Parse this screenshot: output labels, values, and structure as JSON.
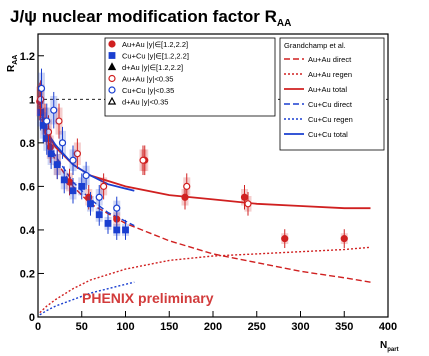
{
  "chart_data": {
    "type": "scatter",
    "title": "J/ψ nuclear modification factor R",
    "title_subscript": "AA",
    "xlabel": "N",
    "xlabel_subscript": "part",
    "ylabel": "R",
    "ylabel_subscript": "AA",
    "xlim": [
      0,
      400
    ],
    "ylim": [
      0,
      1.3
    ],
    "x_ticks": [
      "0",
      "50",
      "100",
      "150",
      "200",
      "250",
      "300",
      "350",
      "400"
    ],
    "y_ticks": [
      "0",
      "0.2",
      "0.4",
      "0.6",
      "0.8",
      "1",
      "1.2"
    ],
    "watermark": "PHENIX preliminary",
    "reference_line_y": 1.0,
    "legend_data_title": "",
    "legend_model_title": "Grandchamp et al.",
    "series": [
      {
        "name": "Au+Au |y|∈[1.2,2.2]",
        "color": "#d02020",
        "marker": "filled-circle",
        "x": [
          2,
          8,
          14,
          22,
          36,
          58,
          90,
          122,
          168,
          236,
          282,
          350
        ],
        "y": [
          0.99,
          0.9,
          0.78,
          0.7,
          0.62,
          0.55,
          0.45,
          0.72,
          0.55,
          0.55,
          0.36,
          0.36
        ]
      },
      {
        "name": "Cu+Cu |y|∈[1.2,2.2]",
        "color": "#1a3fd0",
        "marker": "filled-square",
        "x": [
          3,
          6,
          10,
          15,
          22,
          30,
          40,
          50,
          60,
          70,
          80,
          90,
          100
        ],
        "y": [
          0.94,
          0.88,
          0.82,
          0.75,
          0.7,
          0.63,
          0.58,
          0.6,
          0.52,
          0.47,
          0.43,
          0.4,
          0.4
        ]
      },
      {
        "name": "d+Au |y|∈[1.2,2.2]",
        "color": "#000000",
        "marker": "filled-triangle",
        "x": [],
        "y": []
      },
      {
        "name": "Au+Au |y|<0.35",
        "color": "#d02020",
        "marker": "open-circle",
        "x": [
          3,
          12,
          24,
          45,
          75,
          120,
          170,
          240
        ],
        "y": [
          1.0,
          0.85,
          0.9,
          0.75,
          0.6,
          0.72,
          0.6,
          0.52
        ]
      },
      {
        "name": "Cu+Cu |y|<0.35",
        "color": "#1a3fd0",
        "marker": "open-circle",
        "x": [
          4,
          10,
          18,
          28,
          40,
          55,
          70,
          90
        ],
        "y": [
          1.05,
          0.9,
          0.95,
          0.8,
          0.72,
          0.65,
          0.55,
          0.5
        ]
      },
      {
        "name": "d+Au |y|<0.35",
        "color": "#000000",
        "marker": "open-triangle",
        "x": [],
        "y": []
      }
    ],
    "model_curves": [
      {
        "name": "Au+Au direct",
        "color": "#d02020",
        "style": "dashed",
        "x": [
          2,
          10,
          20,
          40,
          60,
          100,
          150,
          200,
          250,
          300,
          350,
          380
        ],
        "y": [
          0.95,
          0.8,
          0.72,
          0.6,
          0.52,
          0.43,
          0.35,
          0.29,
          0.25,
          0.21,
          0.18,
          0.16
        ]
      },
      {
        "name": "Au+Au regen",
        "color": "#d02020",
        "style": "dotted",
        "x": [
          2,
          10,
          20,
          40,
          60,
          100,
          150,
          200,
          250,
          300,
          350,
          380
        ],
        "y": [
          0.02,
          0.05,
          0.08,
          0.13,
          0.17,
          0.22,
          0.26,
          0.28,
          0.29,
          0.3,
          0.31,
          0.32
        ]
      },
      {
        "name": "Au+Au total",
        "color": "#d02020",
        "style": "solid",
        "x": [
          2,
          10,
          20,
          40,
          60,
          100,
          150,
          200,
          250,
          300,
          350,
          380
        ],
        "y": [
          0.97,
          0.85,
          0.78,
          0.7,
          0.65,
          0.6,
          0.56,
          0.54,
          0.52,
          0.51,
          0.5,
          0.5
        ]
      },
      {
        "name": "Cu+Cu direct",
        "color": "#1a3fd0",
        "style": "dashed",
        "x": [
          2,
          10,
          20,
          40,
          60,
          80,
          100,
          110
        ],
        "y": [
          0.96,
          0.82,
          0.74,
          0.62,
          0.54,
          0.48,
          0.44,
          0.42
        ]
      },
      {
        "name": "Cu+Cu regen",
        "color": "#1a3fd0",
        "style": "dotted",
        "x": [
          2,
          10,
          20,
          40,
          60,
          80,
          100,
          110
        ],
        "y": [
          0.01,
          0.03,
          0.05,
          0.08,
          0.11,
          0.13,
          0.15,
          0.16
        ]
      },
      {
        "name": "Cu+Cu total",
        "color": "#1a3fd0",
        "style": "solid",
        "x": [
          2,
          10,
          20,
          40,
          60,
          80,
          100,
          110
        ],
        "y": [
          0.97,
          0.85,
          0.79,
          0.7,
          0.65,
          0.61,
          0.59,
          0.58
        ]
      }
    ],
    "grid": false,
    "legend_placement": "top-right"
  }
}
